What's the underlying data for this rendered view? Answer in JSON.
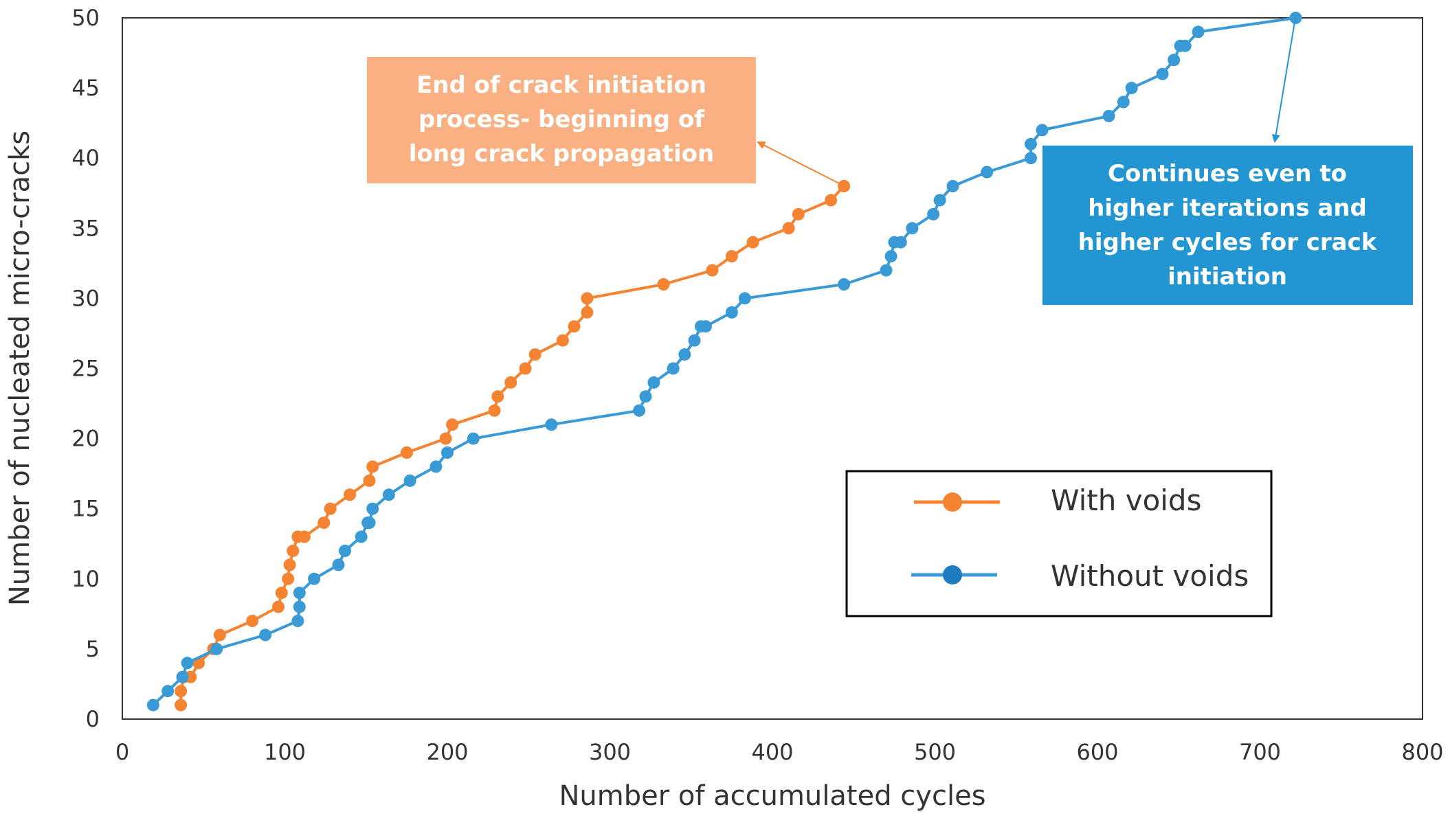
{
  "chart_data": {
    "type": "line",
    "xlabel": "Number of accumulated cycles",
    "ylabel": "Number of nucleated micro-cracks",
    "xlim": [
      0,
      800
    ],
    "ylim": [
      0,
      50
    ],
    "xticks": [
      0,
      100,
      200,
      300,
      400,
      500,
      600,
      700,
      800
    ],
    "yticks": [
      0,
      5,
      10,
      15,
      20,
      25,
      30,
      35,
      40,
      45,
      50
    ],
    "grid": false,
    "legend": {
      "placement": "lower-right"
    },
    "series": [
      {
        "name": "With voids",
        "color": "#f58432",
        "marker": "circle",
        "x": [
          36,
          36,
          38,
          42,
          47,
          56,
          60,
          80,
          96,
          98,
          102,
          103,
          105,
          108,
          112,
          124,
          128,
          140,
          152,
          154,
          175,
          199,
          203,
          229,
          231,
          239,
          248,
          254,
          271,
          278,
          286,
          286,
          333,
          363,
          375,
          388,
          410,
          416,
          436,
          444
        ],
        "y": [
          1,
          2,
          3,
          3,
          4,
          5,
          6,
          7,
          8,
          9,
          10,
          11,
          12,
          13,
          13,
          14,
          15,
          16,
          17,
          18,
          19,
          20,
          21,
          22,
          23,
          24,
          25,
          26,
          27,
          28,
          29,
          30,
          31,
          32,
          33,
          34,
          35,
          36,
          37,
          38
        ]
      },
      {
        "name": "Without voids",
        "color": "#3a9ad5",
        "marker": "circle",
        "x": [
          19,
          28,
          37,
          40,
          58,
          88,
          108,
          109,
          109,
          118,
          133,
          137,
          147,
          151,
          152,
          154,
          164,
          177,
          193,
          200,
          216,
          264,
          318,
          322,
          327,
          339,
          346,
          352,
          356,
          359,
          375,
          383,
          444,
          470,
          473,
          475,
          479,
          486,
          499,
          503,
          511,
          532,
          559,
          559,
          566,
          607,
          616,
          621,
          640,
          647,
          651,
          654,
          662,
          722
        ],
        "y": [
          1,
          2,
          3,
          4,
          5,
          6,
          7,
          8,
          9,
          10,
          11,
          12,
          13,
          14,
          14,
          15,
          16,
          17,
          18,
          19,
          20,
          21,
          22,
          23,
          24,
          25,
          26,
          27,
          28,
          28,
          29,
          30,
          31,
          32,
          33,
          34,
          34,
          35,
          36,
          37,
          38,
          39,
          40,
          41,
          42,
          43,
          44,
          45,
          46,
          47,
          48,
          48,
          49,
          50
        ]
      }
    ],
    "annotations": [
      {
        "lines": [
          "End of crack initiation",
          "process- beginning of",
          "long crack propagation"
        ],
        "background": "#f9b184",
        "points_to": {
          "series": "With voids",
          "x": 444,
          "y": 38
        }
      },
      {
        "lines": [
          "Continues even to",
          "higher iterations and",
          "higher cycles for crack",
          "initiation"
        ],
        "background": "#2396d2",
        "points_to": {
          "series": "Without voids",
          "x": 722,
          "y": 50
        }
      }
    ]
  }
}
